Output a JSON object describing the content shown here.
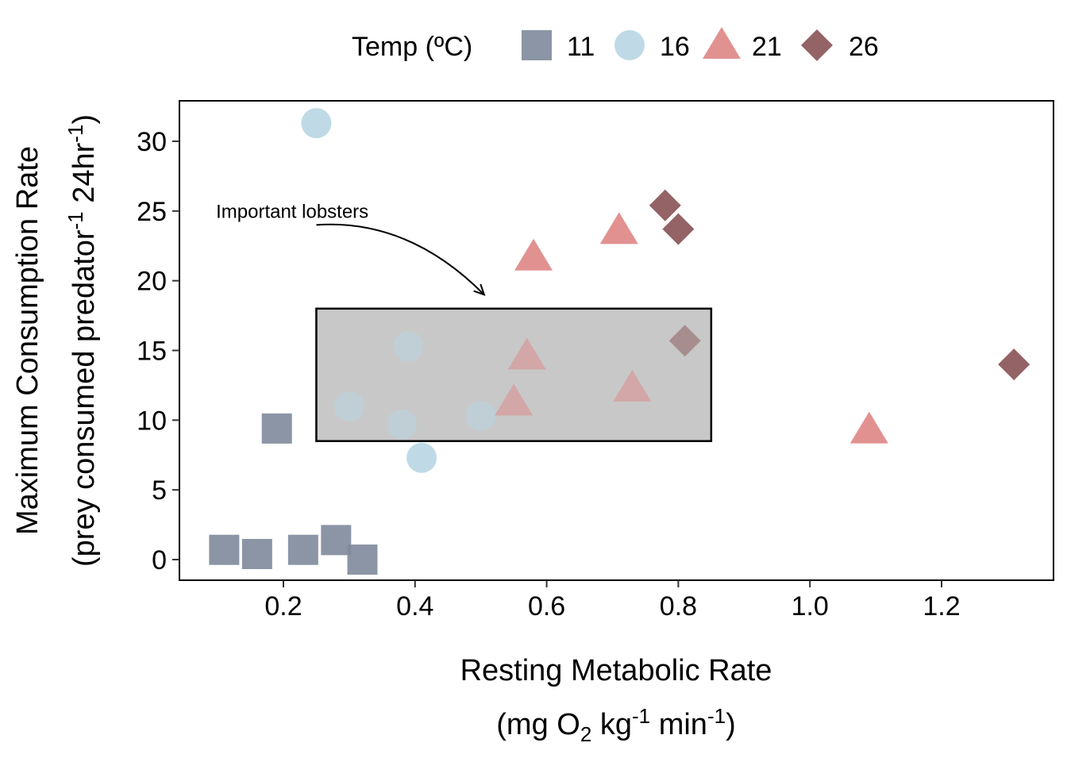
{
  "chart_data": {
    "type": "scatter",
    "title": "",
    "xlabel": {
      "main": "Resting Metabolic Rate",
      "unit": {
        "open": "(mg O",
        "sub1": "2",
        "mid": " kg",
        "sup1": "-1",
        "mid2": " min",
        "sup2": "-1",
        "close": ")"
      }
    },
    "ylabel": {
      "main": "Maximum Consumption Rate",
      "unit": {
        "open": "(prey consumed predator",
        "sup1": "-1",
        "mid": " 24hr",
        "sup2": "-1",
        "close": ")"
      }
    },
    "xlim": [
      0.05,
      1.345
    ],
    "ylim": [
      -1.5,
      32.5
    ],
    "x_ticks": [
      {
        "value": 0.2,
        "label": "0.2"
      },
      {
        "value": 0.4,
        "label": "0.4"
      },
      {
        "value": 0.6,
        "label": "0.6"
      },
      {
        "value": 0.8,
        "label": "0.8"
      },
      {
        "value": 1.0,
        "label": "1.0"
      },
      {
        "value": 1.2,
        "label": "1.2"
      }
    ],
    "y_ticks": [
      {
        "value": 0,
        "label": "0"
      },
      {
        "value": 5,
        "label": "5"
      },
      {
        "value": 10,
        "label": "10"
      },
      {
        "value": 15,
        "label": "15"
      },
      {
        "value": 20,
        "label": "20"
      },
      {
        "value": 25,
        "label": "25"
      },
      {
        "value": 30,
        "label": "30"
      }
    ],
    "grid": false,
    "legend": {
      "title": "Temp (ºC)",
      "position": "top"
    },
    "series": [
      {
        "name": "11",
        "shape": "square",
        "color": "#7f8a9b",
        "points": [
          {
            "x": 0.11,
            "y": 0.7
          },
          {
            "x": 0.16,
            "y": 0.4
          },
          {
            "x": 0.19,
            "y": 9.4
          },
          {
            "x": 0.23,
            "y": 0.7
          },
          {
            "x": 0.28,
            "y": 1.4
          },
          {
            "x": 0.32,
            "y": 0.0
          }
        ]
      },
      {
        "name": "16",
        "shape": "circle",
        "color": "#b8d6e3",
        "points": [
          {
            "x": 0.25,
            "y": 31.3
          },
          {
            "x": 0.3,
            "y": 11.0
          },
          {
            "x": 0.38,
            "y": 9.7
          },
          {
            "x": 0.39,
            "y": 15.3
          },
          {
            "x": 0.41,
            "y": 7.3
          },
          {
            "x": 0.5,
            "y": 10.3
          }
        ]
      },
      {
        "name": "21",
        "shape": "triangle",
        "color": "#df8585",
        "points": [
          {
            "x": 0.55,
            "y": 11.3
          },
          {
            "x": 0.57,
            "y": 14.6
          },
          {
            "x": 0.58,
            "y": 21.7
          },
          {
            "x": 0.71,
            "y": 23.6
          },
          {
            "x": 0.73,
            "y": 12.3
          },
          {
            "x": 1.09,
            "y": 9.3
          }
        ]
      },
      {
        "name": "26",
        "shape": "diamond",
        "color": "#875255",
        "points": [
          {
            "x": 0.78,
            "y": 25.4
          },
          {
            "x": 0.8,
            "y": 23.7
          },
          {
            "x": 0.81,
            "y": 15.7
          },
          {
            "x": 1.31,
            "y": 14.0
          }
        ]
      }
    ],
    "annotations": [
      {
        "type": "rect",
        "xmin": 0.25,
        "xmax": 0.85,
        "ymin": 8.5,
        "ymax": 18.0,
        "fill": "#c8c8c8"
      },
      {
        "type": "text",
        "text": "Important lobsters",
        "x": 0.1,
        "y": 24.8
      },
      {
        "type": "arrow",
        "from": [
          0.25,
          24.0
        ],
        "to": [
          0.505,
          19.0
        ]
      }
    ]
  }
}
